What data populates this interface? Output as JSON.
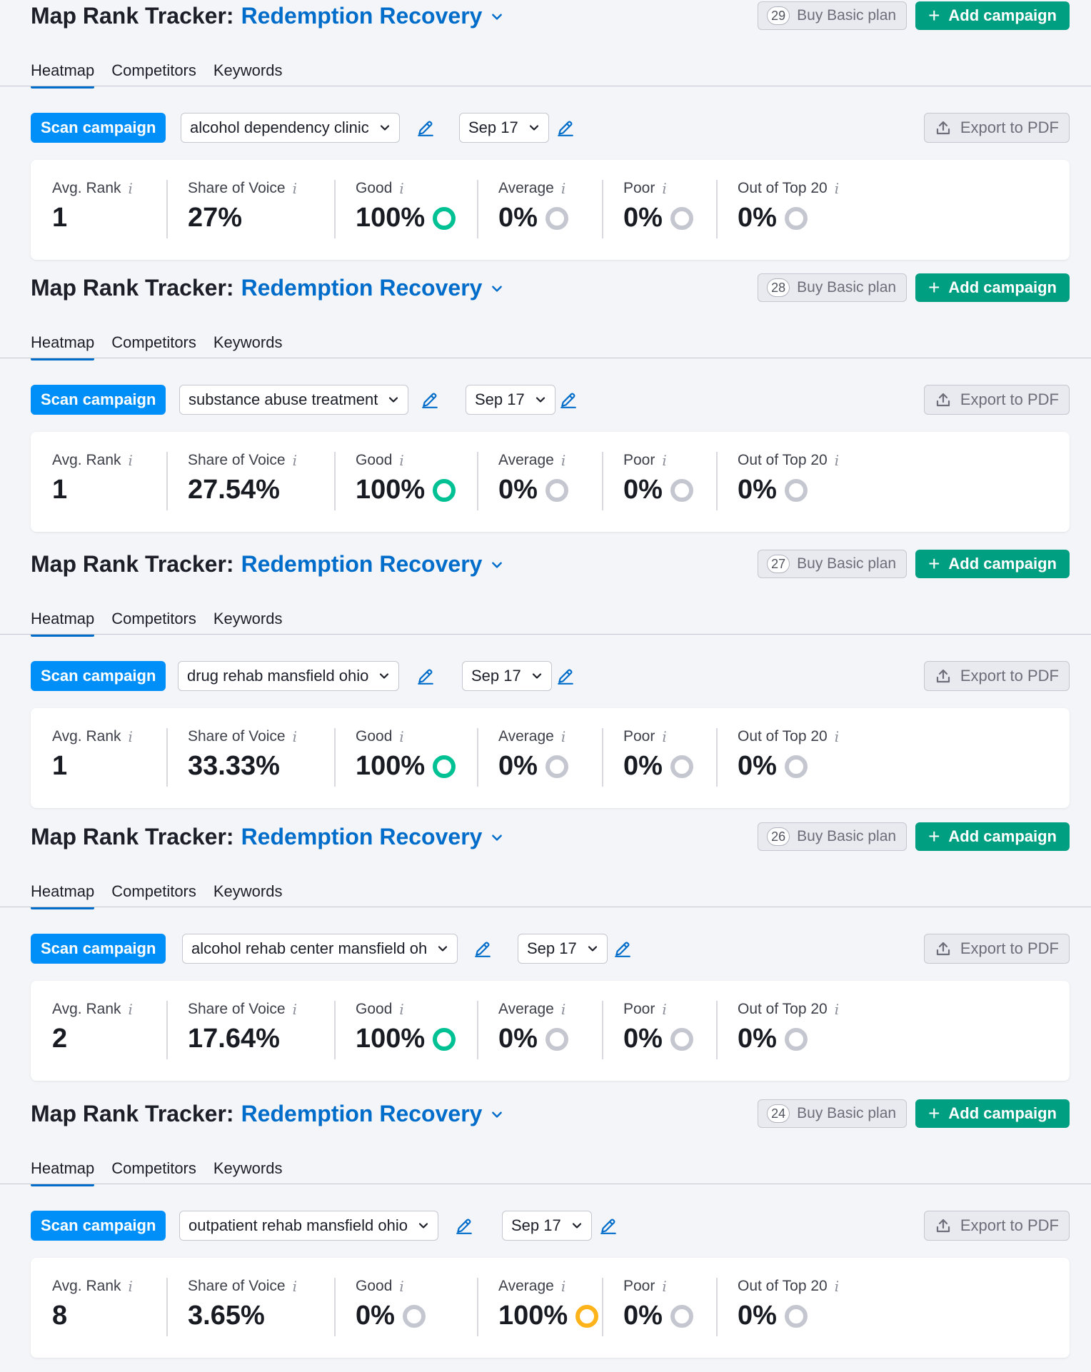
{
  "colors": {
    "brand_blue": "#006dca",
    "scan_blue": "#008ff8",
    "add_green": "#009f81",
    "good_ring": "#00c194",
    "average_ring": "#ffb31a",
    "empty_ring": "#c4c7cf"
  },
  "icons": {
    "chevron": "chevron-down-icon",
    "edit": "pencil-icon",
    "export": "upload-icon",
    "info": "info-icon",
    "plus": "plus-icon",
    "ring": "ring-icon"
  },
  "panels": [
    {
      "header": {
        "title": "Map Rank Tracker:",
        "campaign": "Redemption Recovery",
        "plan_count": "29",
        "plan_label": "Buy Basic plan",
        "add_label": "Add campaign"
      },
      "tabs": [
        "Heatmap",
        "Competitors",
        "Keywords"
      ],
      "toolbar": {
        "scan_label": "Scan campaign",
        "keyword": "alcohol dependency clinic",
        "date": "Sep 17",
        "export_label": "Export to PDF"
      },
      "metrics": {
        "avg_rank_label": "Avg. Rank",
        "avg_rank": "1",
        "sov_label": "Share of Voice",
        "sov": "27%",
        "good_label": "Good",
        "good": "100%",
        "average_label": "Average",
        "average": "0%",
        "poor_label": "Poor",
        "poor": "0%",
        "out_label": "Out of Top 20",
        "out": "0%"
      }
    },
    {
      "header": {
        "title": "Map Rank Tracker:",
        "campaign": "Redemption Recovery",
        "plan_count": "28",
        "plan_label": "Buy Basic plan",
        "add_label": "Add campaign"
      },
      "tabs": [
        "Heatmap",
        "Competitors",
        "Keywords"
      ],
      "toolbar": {
        "scan_label": "Scan campaign",
        "keyword": "substance abuse treatment",
        "date": "Sep 17",
        "export_label": "Export to PDF"
      },
      "metrics": {
        "avg_rank_label": "Avg. Rank",
        "avg_rank": "1",
        "sov_label": "Share of Voice",
        "sov": "27.54%",
        "good_label": "Good",
        "good": "100%",
        "average_label": "Average",
        "average": "0%",
        "poor_label": "Poor",
        "poor": "0%",
        "out_label": "Out of Top 20",
        "out": "0%"
      }
    },
    {
      "header": {
        "title": "Map Rank Tracker:",
        "campaign": "Redemption Recovery",
        "plan_count": "27",
        "plan_label": "Buy Basic plan",
        "add_label": "Add campaign"
      },
      "tabs": [
        "Heatmap",
        "Competitors",
        "Keywords"
      ],
      "toolbar": {
        "scan_label": "Scan campaign",
        "keyword": "drug rehab mansfield ohio",
        "date": "Sep 17",
        "export_label": "Export to PDF"
      },
      "metrics": {
        "avg_rank_label": "Avg. Rank",
        "avg_rank": "1",
        "sov_label": "Share of Voice",
        "sov": "33.33%",
        "good_label": "Good",
        "good": "100%",
        "average_label": "Average",
        "average": "0%",
        "poor_label": "Poor",
        "poor": "0%",
        "out_label": "Out of Top 20",
        "out": "0%"
      }
    },
    {
      "header": {
        "title": "Map Rank Tracker:",
        "campaign": "Redemption Recovery",
        "plan_count": "26",
        "plan_label": "Buy Basic plan",
        "add_label": "Add campaign"
      },
      "tabs": [
        "Heatmap",
        "Competitors",
        "Keywords"
      ],
      "toolbar": {
        "scan_label": "Scan campaign",
        "keyword": "alcohol rehab center mansfield oh",
        "date": "Sep 17",
        "export_label": "Export to PDF"
      },
      "metrics": {
        "avg_rank_label": "Avg. Rank",
        "avg_rank": "2",
        "sov_label": "Share of Voice",
        "sov": "17.64%",
        "good_label": "Good",
        "good": "100%",
        "average_label": "Average",
        "average": "0%",
        "poor_label": "Poor",
        "poor": "0%",
        "out_label": "Out of Top 20",
        "out": "0%"
      }
    },
    {
      "header": {
        "title": "Map Rank Tracker:",
        "campaign": "Redemption Recovery",
        "plan_count": "24",
        "plan_label": "Buy Basic plan",
        "add_label": "Add campaign"
      },
      "tabs": [
        "Heatmap",
        "Competitors",
        "Keywords"
      ],
      "toolbar": {
        "scan_label": "Scan campaign",
        "keyword": "outpatient rehab mansfield ohio",
        "date": "Sep 17",
        "export_label": "Export to PDF"
      },
      "metrics": {
        "avg_rank_label": "Avg. Rank",
        "avg_rank": "8",
        "sov_label": "Share of Voice",
        "sov": "3.65%",
        "good_label": "Good",
        "good": "0%",
        "average_label": "Average",
        "average": "100%",
        "poor_label": "Poor",
        "poor": "0%",
        "out_label": "Out of Top 20",
        "out": "0%"
      }
    }
  ]
}
